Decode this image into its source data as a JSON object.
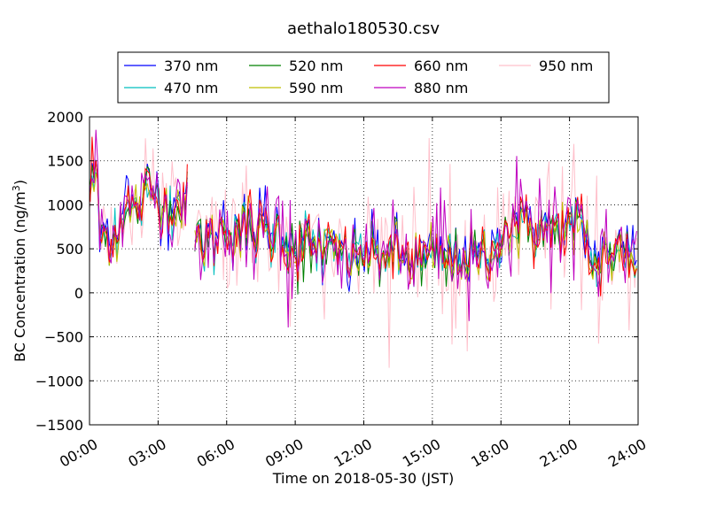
{
  "chart_data": {
    "type": "line",
    "title": "aethalo180530.csv",
    "xlabel": "Time on 2018-05-30 (JST)",
    "ylabel": "BC Concentration (ng/m³)",
    "ylabel_parts": {
      "prefix": "BC Concentration (ng/m",
      "sup": "3",
      "suffix": ")"
    },
    "x_tick_labels": [
      "00:00",
      "03:00",
      "06:00",
      "09:00",
      "12:00",
      "15:00",
      "18:00",
      "21:00",
      "24:00"
    ],
    "x_unit": "hours",
    "xlim": [
      0,
      24
    ],
    "ylim": [
      -1500,
      2000
    ],
    "y_ticks": [
      -1500,
      -1000,
      -500,
      0,
      500,
      1000,
      1500,
      2000
    ],
    "y_tick_labels": [
      "−1500",
      "−1000",
      "−500",
      "0",
      "500",
      "1000",
      "1500",
      "2000"
    ],
    "grid": true,
    "legend_position": "top-center",
    "sampling_interval_hours": 0.0833,
    "series": [
      {
        "name": "370 nm",
        "color": "#0000ff"
      },
      {
        "name": "470 nm",
        "color": "#00bfbf"
      },
      {
        "name": "520 nm",
        "color": "#008000"
      },
      {
        "name": "590 nm",
        "color": "#bfbf00"
      },
      {
        "name": "660 nm",
        "color": "#ff0000"
      },
      {
        "name": "880 nm",
        "color": "#bf00bf"
      },
      {
        "name": "950 nm",
        "color": "#ffc0cb"
      }
    ]
  }
}
